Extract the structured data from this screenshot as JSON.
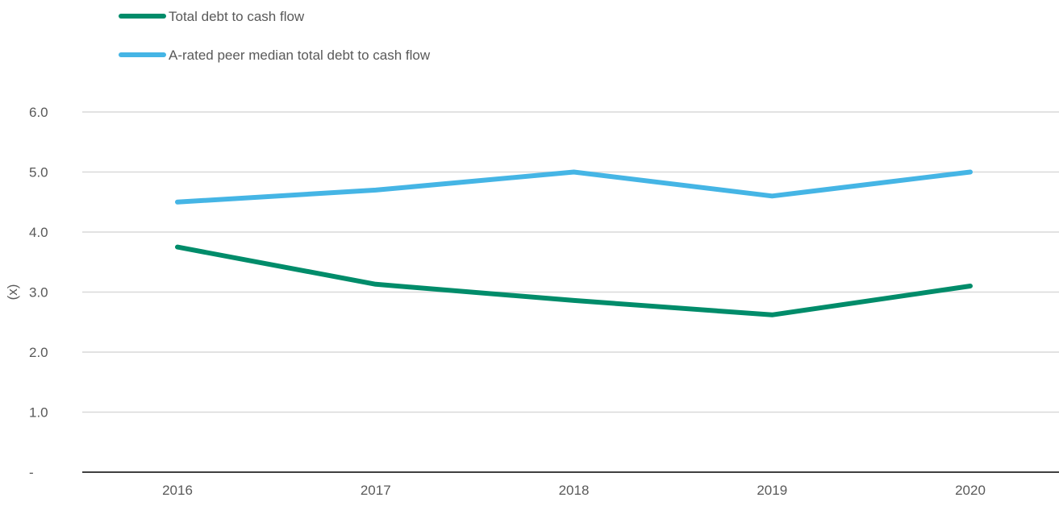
{
  "chart_data": {
    "type": "line",
    "title": "",
    "xlabel": "",
    "ylabel": "(x)",
    "categories": [
      "2016",
      "2017",
      "2018",
      "2019",
      "2020"
    ],
    "y_ticks": [
      0,
      1,
      2,
      3,
      4,
      5,
      6
    ],
    "y_tick_labels": [
      "-",
      "1.0",
      "2.0",
      "3.0",
      "4.0",
      "5.0",
      "6.0"
    ],
    "ylim": [
      0,
      6
    ],
    "grid": "horizontal",
    "legend_position": "top-left",
    "series": [
      {
        "name": "Total debt to cash flow",
        "color": "#008C6A",
        "values": [
          3.75,
          3.13,
          2.86,
          2.62,
          3.1
        ]
      },
      {
        "name": "A-rated peer median total debt to cash flow",
        "color": "#45B5E5",
        "values": [
          4.5,
          4.7,
          5.0,
          4.6,
          5.0
        ]
      }
    ]
  }
}
